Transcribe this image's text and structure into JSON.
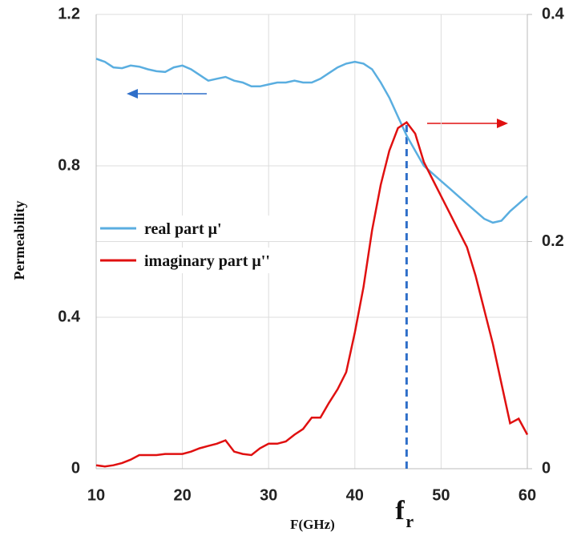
{
  "chart_data": {
    "type": "line",
    "x_label": "F(GHz)",
    "y_label": "Permeability",
    "x": [
      10,
      11,
      12,
      13,
      14,
      15,
      16,
      17,
      18,
      19,
      20,
      21,
      22,
      23,
      24,
      25,
      26,
      27,
      28,
      29,
      30,
      31,
      32,
      33,
      34,
      35,
      36,
      37,
      38,
      39,
      40,
      41,
      42,
      43,
      44,
      45,
      46,
      47,
      48,
      49,
      50,
      51,
      52,
      53,
      54,
      55,
      56,
      57,
      58,
      59,
      60
    ],
    "series": [
      {
        "name": "real part μ'",
        "color": "#5aaee0",
        "values": [
          1.083,
          1.075,
          1.06,
          1.058,
          1.065,
          1.062,
          1.055,
          1.05,
          1.048,
          1.06,
          1.065,
          1.055,
          1.04,
          1.025,
          1.03,
          1.035,
          1.025,
          1.02,
          1.01,
          1.01,
          1.015,
          1.02,
          1.02,
          1.025,
          1.02,
          1.02,
          1.03,
          1.045,
          1.06,
          1.07,
          1.075,
          1.07,
          1.055,
          1.02,
          0.98,
          0.93,
          0.88,
          0.84,
          0.8,
          0.78,
          0.76,
          0.74,
          0.72,
          0.7,
          0.68,
          0.66,
          0.65,
          0.655,
          0.68,
          0.7,
          0.72
        ]
      },
      {
        "name": "imaginary part μ''",
        "color": "#e01010",
        "axis": "y2",
        "values": [
          0.003,
          0.002,
          0.003,
          0.005,
          0.008,
          0.012,
          0.012,
          0.012,
          0.013,
          0.013,
          0.013,
          0.015,
          0.018,
          0.02,
          0.022,
          0.025,
          0.015,
          0.013,
          0.012,
          0.018,
          0.022,
          0.022,
          0.024,
          0.03,
          0.035,
          0.045,
          0.045,
          0.058,
          0.07,
          0.085,
          0.12,
          0.16,
          0.21,
          0.25,
          0.28,
          0.3,
          0.305,
          0.295,
          0.27,
          0.255,
          0.24,
          0.225,
          0.21,
          0.195,
          0.17,
          0.14,
          0.11,
          0.075,
          0.04,
          0.044,
          0.03
        ]
      }
    ],
    "xlim": [
      10,
      60
    ],
    "xticks": [
      10,
      20,
      30,
      40,
      50,
      60
    ],
    "ylim": [
      0,
      1.2
    ],
    "yticks": [
      0,
      0.4,
      0.8,
      1.2
    ],
    "y2lim": [
      0,
      0.4
    ],
    "y2ticks": [
      0,
      0.2,
      0.4
    ],
    "grid": true,
    "legend": "left",
    "marker_x": 46,
    "marker_label": "f",
    "marker_label_sub": "r"
  }
}
